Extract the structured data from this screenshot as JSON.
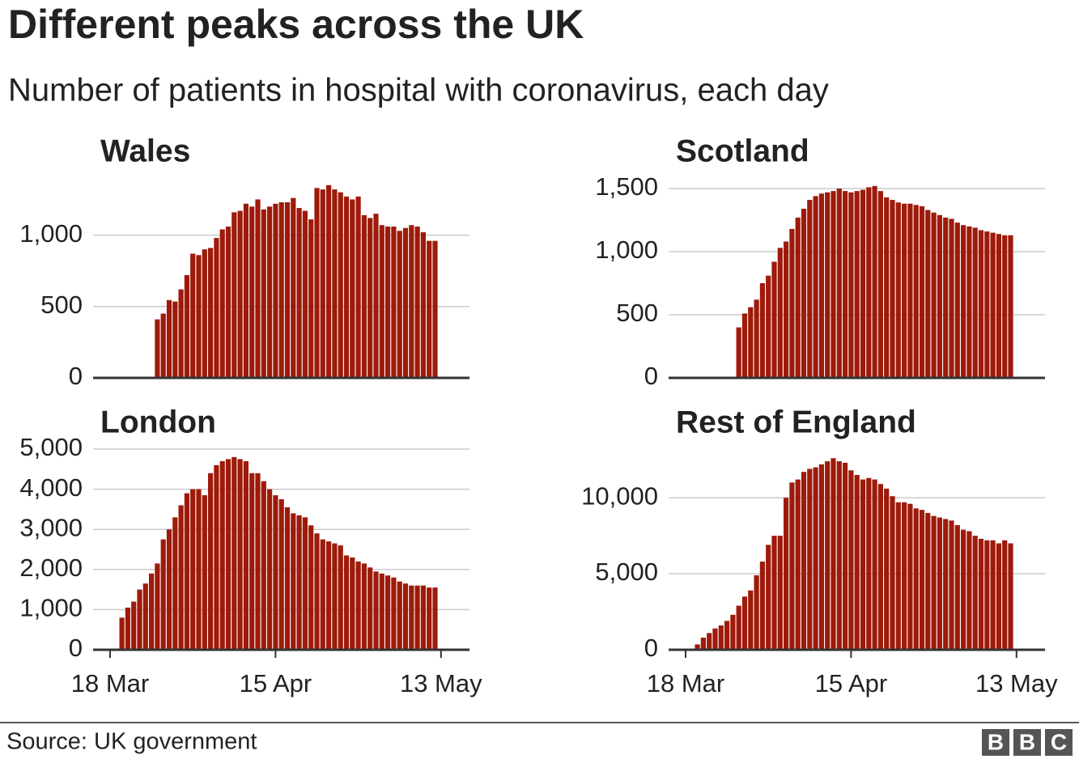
{
  "title": "Different peaks across the UK",
  "subtitle": "Number of patients in hospital with coronavirus, each day",
  "source": "Source: UK government",
  "logo": [
    "B",
    "B",
    "C"
  ],
  "chart_data": [
    {
      "type": "bar",
      "title": "Wales",
      "color": "#9e1a0a",
      "x": [
        "18 Mar",
        "19 Mar",
        "20 Mar",
        "21 Mar",
        "22 Mar",
        "23 Mar",
        "24 Mar",
        "25 Mar",
        "26 Mar",
        "27 Mar",
        "28 Mar",
        "29 Mar",
        "30 Mar",
        "31 Mar",
        "1 Apr",
        "2 Apr",
        "3 Apr",
        "4 Apr",
        "5 Apr",
        "6 Apr",
        "7 Apr",
        "8 Apr",
        "9 Apr",
        "10 Apr",
        "11 Apr",
        "12 Apr",
        "13 Apr",
        "14 Apr",
        "15 Apr",
        "16 Apr",
        "17 Apr",
        "18 Apr",
        "19 Apr",
        "20 Apr",
        "21 Apr",
        "22 Apr",
        "23 Apr",
        "24 Apr",
        "25 Apr",
        "26 Apr",
        "27 Apr",
        "28 Apr",
        "29 Apr",
        "30 Apr",
        "1 May",
        "2 May",
        "3 May",
        "4 May",
        "5 May",
        "6 May",
        "7 May",
        "8 May",
        "9 May",
        "10 May",
        "11 May",
        "12 May",
        "13 May"
      ],
      "values": [
        null,
        null,
        null,
        null,
        null,
        null,
        null,
        null,
        410,
        450,
        545,
        535,
        620,
        720,
        870,
        860,
        900,
        910,
        980,
        1040,
        1060,
        1160,
        1170,
        1220,
        1200,
        1250,
        1180,
        1200,
        1220,
        1230,
        1230,
        1260,
        1190,
        1170,
        1110,
        1330,
        1320,
        1350,
        1320,
        1300,
        1270,
        1250,
        1270,
        1140,
        1120,
        1150,
        1070,
        1060,
        1060,
        1030,
        1050,
        1070,
        1060,
        1020,
        960,
        960,
        null
      ],
      "ylim": [
        0,
        1400
      ],
      "yticks": [
        0,
        500,
        {
          "value": 1000,
          "label": "1,000"
        }
      ],
      "grid": true
    },
    {
      "type": "bar",
      "title": "Scotland",
      "color": "#9e1a0a",
      "x": [
        "18 Mar",
        "19 Mar",
        "20 Mar",
        "21 Mar",
        "22 Mar",
        "23 Mar",
        "24 Mar",
        "25 Mar",
        "26 Mar",
        "27 Mar",
        "28 Mar",
        "29 Mar",
        "30 Mar",
        "31 Mar",
        "1 Apr",
        "2 Apr",
        "3 Apr",
        "4 Apr",
        "5 Apr",
        "6 Apr",
        "7 Apr",
        "8 Apr",
        "9 Apr",
        "10 Apr",
        "11 Apr",
        "12 Apr",
        "13 Apr",
        "14 Apr",
        "15 Apr",
        "16 Apr",
        "17 Apr",
        "18 Apr",
        "19 Apr",
        "20 Apr",
        "21 Apr",
        "22 Apr",
        "23 Apr",
        "24 Apr",
        "25 Apr",
        "26 Apr",
        "27 Apr",
        "28 Apr",
        "29 Apr",
        "30 Apr",
        "1 May",
        "2 May",
        "3 May",
        "4 May",
        "5 May",
        "6 May",
        "7 May",
        "8 May",
        "9 May",
        "10 May",
        "11 May",
        "12 May",
        "13 May"
      ],
      "values": [
        null,
        null,
        null,
        null,
        null,
        null,
        null,
        null,
        null,
        400,
        510,
        560,
        620,
        750,
        810,
        920,
        1030,
        1080,
        1180,
        1270,
        1340,
        1410,
        1440,
        1460,
        1470,
        1480,
        1500,
        1480,
        1470,
        1480,
        1490,
        1510,
        1520,
        1480,
        1430,
        1410,
        1390,
        1380,
        1380,
        1370,
        1360,
        1330,
        1310,
        1290,
        1270,
        1260,
        1230,
        1210,
        1200,
        1190,
        1170,
        1160,
        1150,
        1140,
        1130,
        1130,
        null
      ],
      "ylim": [
        0,
        1500
      ],
      "yticks": [
        0,
        500,
        {
          "value": 1000,
          "label": "1,000"
        },
        {
          "value": 1500,
          "label": "1,500"
        }
      ],
      "grid": true
    },
    {
      "type": "bar",
      "title": "London",
      "color": "#9e1a0a",
      "x": [
        "18 Mar",
        "19 Mar",
        "20 Mar",
        "21 Mar",
        "22 Mar",
        "23 Mar",
        "24 Mar",
        "25 Mar",
        "26 Mar",
        "27 Mar",
        "28 Mar",
        "29 Mar",
        "30 Mar",
        "31 Mar",
        "1 Apr",
        "2 Apr",
        "3 Apr",
        "4 Apr",
        "5 Apr",
        "6 Apr",
        "7 Apr",
        "8 Apr",
        "9 Apr",
        "10 Apr",
        "11 Apr",
        "12 Apr",
        "13 Apr",
        "14 Apr",
        "15 Apr",
        "16 Apr",
        "17 Apr",
        "18 Apr",
        "19 Apr",
        "20 Apr",
        "21 Apr",
        "22 Apr",
        "23 Apr",
        "24 Apr",
        "25 Apr",
        "26 Apr",
        "27 Apr",
        "28 Apr",
        "29 Apr",
        "30 Apr",
        "1 May",
        "2 May",
        "3 May",
        "4 May",
        "5 May",
        "6 May",
        "7 May",
        "8 May",
        "9 May",
        "10 May",
        "11 May",
        "12 May",
        "13 May"
      ],
      "values": [
        null,
        null,
        800,
        1050,
        1200,
        1500,
        1650,
        1900,
        2150,
        2750,
        3000,
        3300,
        3600,
        3900,
        4000,
        4000,
        3850,
        4400,
        4600,
        4700,
        4750,
        4800,
        4750,
        4700,
        4400,
        4400,
        4200,
        4000,
        3850,
        3750,
        3550,
        3400,
        3350,
        3300,
        3100,
        2900,
        2750,
        2700,
        2650,
        2600,
        2350,
        2300,
        2200,
        2150,
        2050,
        1950,
        1900,
        1850,
        1800,
        1700,
        1650,
        1600,
        1600,
        1600,
        1550,
        1550,
        null
      ],
      "xticks": [
        "18 Mar",
        "15 Apr",
        "13 May"
      ],
      "ylim": [
        0,
        5000
      ],
      "yticks": [
        0,
        {
          "value": 1000,
          "label": "1,000"
        },
        {
          "value": 2000,
          "label": "2,000"
        },
        {
          "value": 3000,
          "label": "3,000"
        },
        {
          "value": 4000,
          "label": "4,000"
        },
        {
          "value": 5000,
          "label": "5,000"
        }
      ],
      "grid": true
    },
    {
      "type": "bar",
      "title": "Rest of England",
      "color": "#9e1a0a",
      "x": [
        "18 Mar",
        "19 Mar",
        "20 Mar",
        "21 Mar",
        "22 Mar",
        "23 Mar",
        "24 Mar",
        "25 Mar",
        "26 Mar",
        "27 Mar",
        "28 Mar",
        "29 Mar",
        "30 Mar",
        "31 Mar",
        "1 Apr",
        "2 Apr",
        "3 Apr",
        "4 Apr",
        "5 Apr",
        "6 Apr",
        "7 Apr",
        "8 Apr",
        "9 Apr",
        "10 Apr",
        "11 Apr",
        "12 Apr",
        "13 Apr",
        "14 Apr",
        "15 Apr",
        "16 Apr",
        "17 Apr",
        "18 Apr",
        "19 Apr",
        "20 Apr",
        "21 Apr",
        "22 Apr",
        "23 Apr",
        "24 Apr",
        "25 Apr",
        "26 Apr",
        "27 Apr",
        "28 Apr",
        "29 Apr",
        "30 Apr",
        "1 May",
        "2 May",
        "3 May",
        "4 May",
        "5 May",
        "6 May",
        "7 May",
        "8 May",
        "9 May",
        "10 May",
        "11 May",
        "12 May",
        "13 May"
      ],
      "values": [
        null,
        null,
        350,
        800,
        1100,
        1400,
        1600,
        1900,
        2300,
        2900,
        3500,
        3900,
        4900,
        5800,
        6900,
        7500,
        7500,
        10000,
        11000,
        11200,
        11700,
        11900,
        12000,
        12200,
        12400,
        12600,
        12400,
        12300,
        11800,
        11500,
        11200,
        11300,
        11200,
        10900,
        10600,
        10100,
        9700,
        9700,
        9600,
        9300,
        9200,
        9000,
        8800,
        8700,
        8600,
        8500,
        8200,
        7900,
        7800,
        7500,
        7300,
        7200,
        7200,
        7000,
        7200,
        7000,
        null
      ],
      "xticks": [
        "18 Mar",
        "15 Apr",
        "13 May"
      ],
      "ylim": [
        0,
        13200
      ],
      "yticks": [
        0,
        {
          "value": 5000,
          "label": "5,000"
        },
        {
          "value": 10000,
          "label": "10,000"
        }
      ],
      "grid": true
    }
  ]
}
